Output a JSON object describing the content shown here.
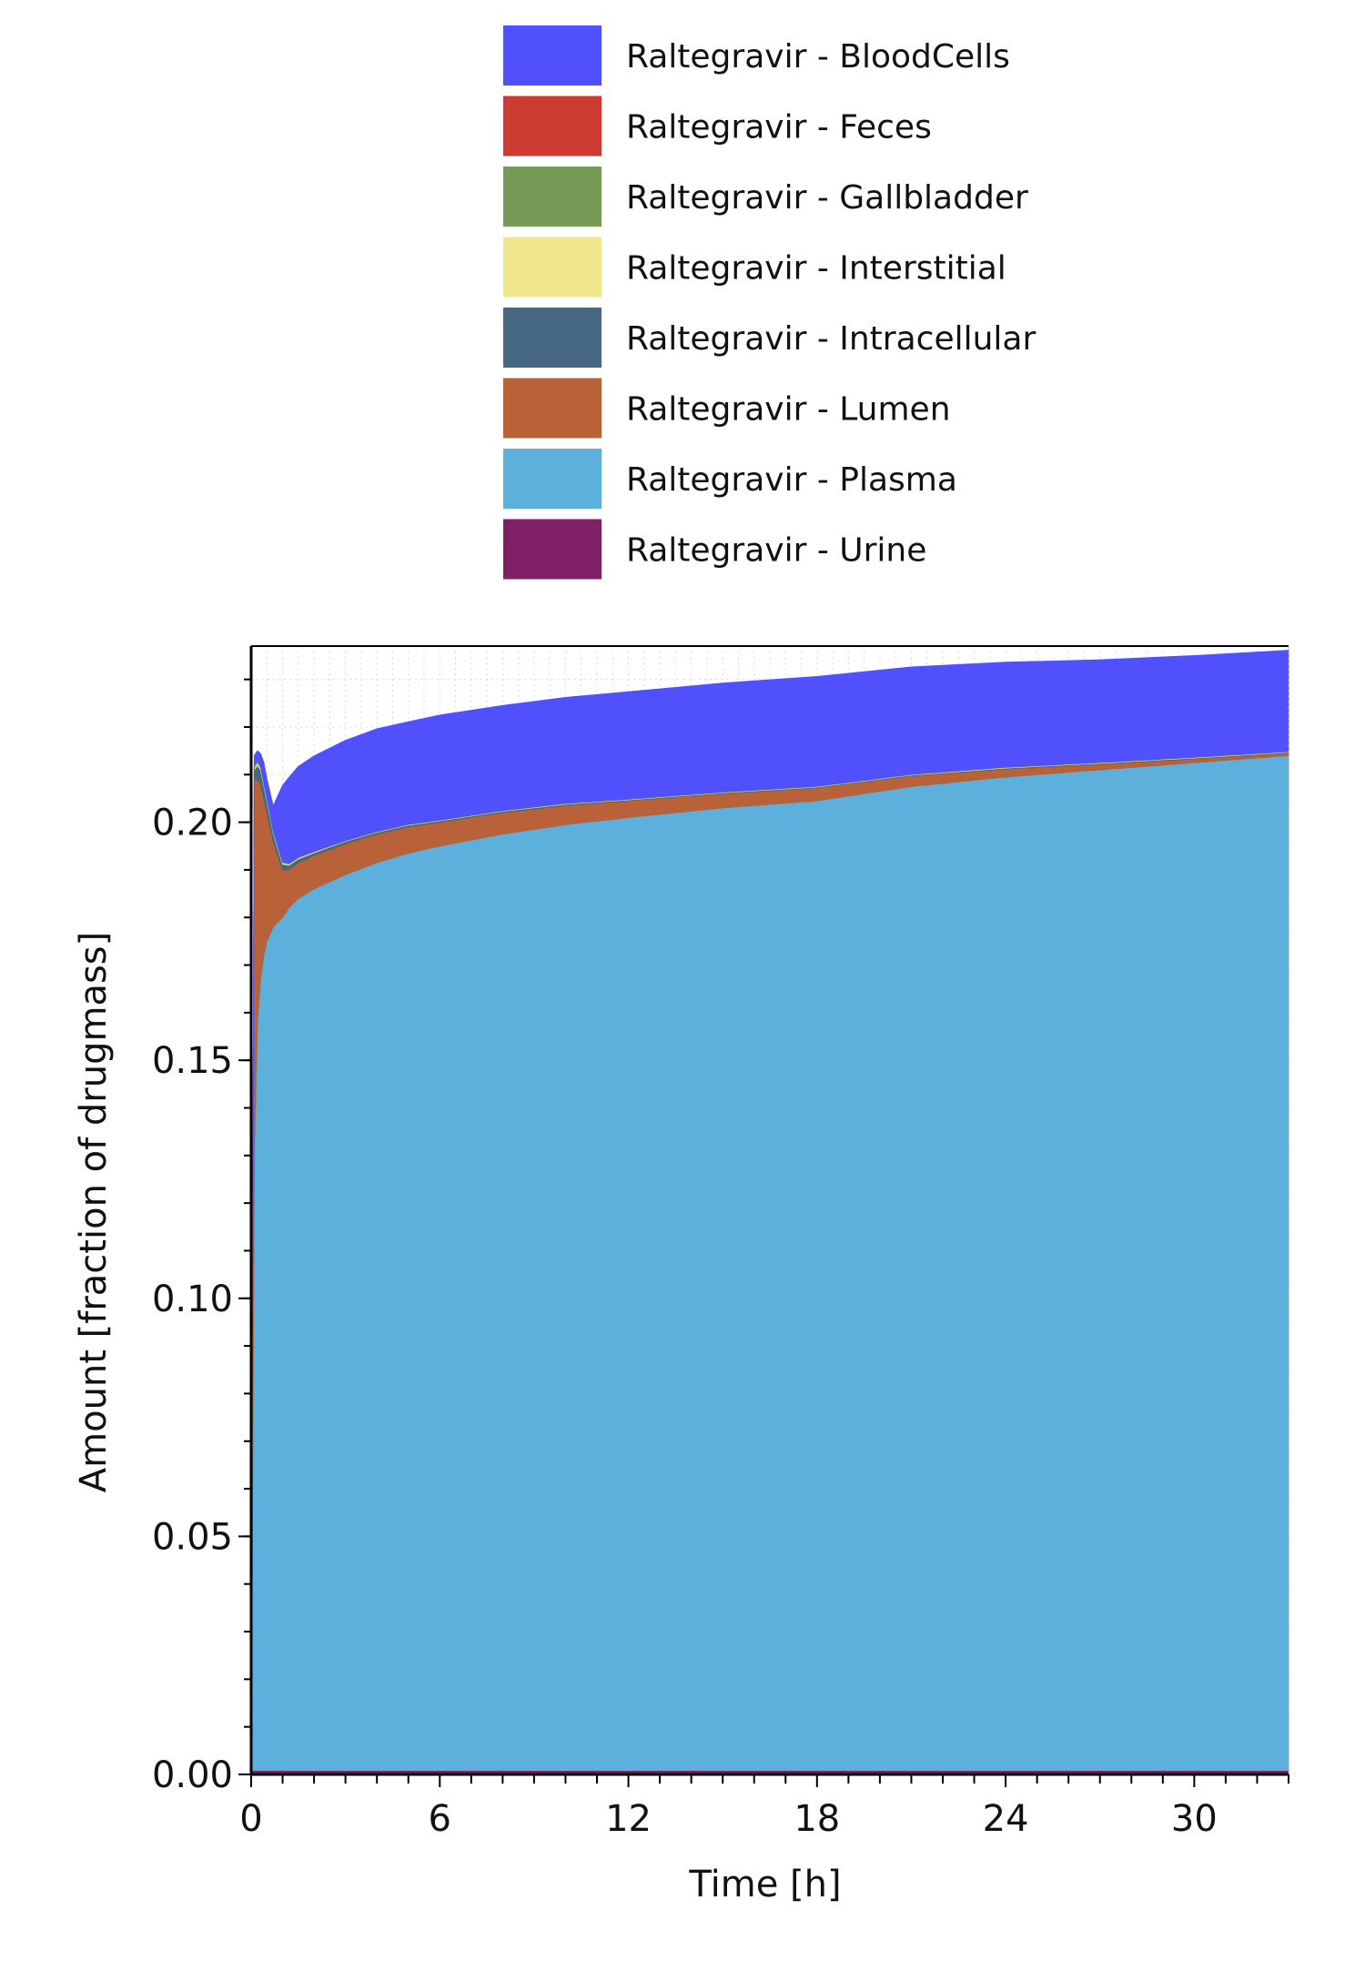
{
  "chart_data": {
    "type": "area",
    "stacked": true,
    "xlabel": "Time [h]",
    "ylabel": "Amount [fraction of drugmass]",
    "xlim": [
      0,
      33
    ],
    "ylim": [
      0,
      0.237
    ],
    "xticks": [
      0,
      6,
      12,
      18,
      24,
      30
    ],
    "yticks": [
      0.0,
      0.05,
      0.1,
      0.15,
      0.2
    ],
    "ytick_labels": [
      "0.00",
      "0.05",
      "0.10",
      "0.15",
      "0.20"
    ],
    "grid": true,
    "legend_position": "top",
    "x": [
      0,
      0.1,
      0.2,
      0.3,
      0.4,
      0.5,
      0.7,
      1,
      1.2,
      1.5,
      2,
      3,
      4,
      5,
      6,
      8,
      10,
      12,
      15,
      18,
      21,
      24,
      27,
      30,
      33
    ],
    "series": [
      {
        "name": "Raltegravir - Urine",
        "color": "#7f1f66",
        "values": [
          0,
          0,
          0,
          0,
          0,
          0,
          0,
          0,
          0,
          0,
          0,
          0,
          0,
          0,
          0,
          0,
          0,
          0,
          0,
          0,
          0,
          0,
          0,
          0,
          0
        ]
      },
      {
        "name": "Raltegravir - Plasma",
        "color": "#5dafdc",
        "values": [
          0,
          0.13,
          0.158,
          0.167,
          0.172,
          0.175,
          0.178,
          0.18,
          0.182,
          0.184,
          0.186,
          0.189,
          0.1915,
          0.1935,
          0.195,
          0.1975,
          0.1995,
          0.201,
          0.203,
          0.2045,
          0.2075,
          0.2095,
          0.211,
          0.2125,
          0.214
        ]
      },
      {
        "name": "Raltegravir - Lumen",
        "color": "#b9623a",
        "values": [
          0,
          0.079,
          0.051,
          0.041,
          0.033,
          0.027,
          0.018,
          0.01,
          0.008,
          0.0075,
          0.007,
          0.0065,
          0.006,
          0.0055,
          0.005,
          0.0045,
          0.004,
          0.0035,
          0.003,
          0.0027,
          0.0022,
          0.0017,
          0.0012,
          0.0008,
          0.0005
        ]
      },
      {
        "name": "Raltegravir - Intracellular",
        "color": "#476883",
        "values": [
          0,
          0.002,
          0.003,
          0.003,
          0.0028,
          0.0024,
          0.0018,
          0.0012,
          0.001,
          0.0008,
          0.0006,
          0.0005,
          0.0004,
          0.0004,
          0.0003,
          0.0003,
          0.0003,
          0.0002,
          0.0002,
          0.0002,
          0.0002,
          0.0002,
          0.0002,
          0.0002,
          0.0002
        ]
      },
      {
        "name": "Raltegravir - Interstitial",
        "color": "#f0e68c",
        "values": [
          0,
          0.0005,
          0.0005,
          0.0005,
          0.0004,
          0.0004,
          0.0003,
          0.0003,
          0.0002,
          0.0002,
          0.0002,
          0.0001,
          0.0001,
          0.0001,
          0.0001,
          0.0001,
          0.0001,
          0.0001,
          0.0001,
          0.0001,
          0.0001,
          0.0001,
          0.0001,
          0.0001,
          0.0001
        ]
      },
      {
        "name": "Raltegravir - Gallbladder",
        "color": "#769b56",
        "values": [
          0,
          0.0005,
          0.0005,
          0.0004,
          0.0004,
          0.0003,
          0.0003,
          0.0002,
          0.0002,
          0.0002,
          0.0001,
          0.0001,
          0.0001,
          0.0001,
          0.0001,
          0.0001,
          0.0001,
          0.0001,
          0.0001,
          0.0001,
          0.0001,
          0.0001,
          0.0001,
          0.0001,
          0.0001
        ]
      },
      {
        "name": "Raltegravir - Feces",
        "color": "#cb3b31",
        "values": [
          0,
          0,
          0,
          0,
          0,
          0,
          0,
          0,
          0,
          0,
          0,
          0,
          0,
          0,
          0,
          0,
          0,
          0,
          0,
          0,
          0,
          0,
          0,
          0,
          0
        ]
      },
      {
        "name": "Raltegravir - BloodCells",
        "color": "#5050fc",
        "values": [
          0,
          0.002,
          0.002,
          0.0025,
          0.004,
          0.004,
          0.005,
          0.016,
          0.018,
          0.019,
          0.02,
          0.021,
          0.0215,
          0.0215,
          0.022,
          0.022,
          0.0222,
          0.0225,
          0.0228,
          0.023,
          0.0225,
          0.022,
          0.0215,
          0.0213,
          0.0212
        ]
      }
    ],
    "legend_order": [
      "Raltegravir - BloodCells",
      "Raltegravir - Feces",
      "Raltegravir - Gallbladder",
      "Raltegravir - Interstitial",
      "Raltegravir - Intracellular",
      "Raltegravir - Lumen",
      "Raltegravir - Plasma",
      "Raltegravir - Urine"
    ]
  }
}
